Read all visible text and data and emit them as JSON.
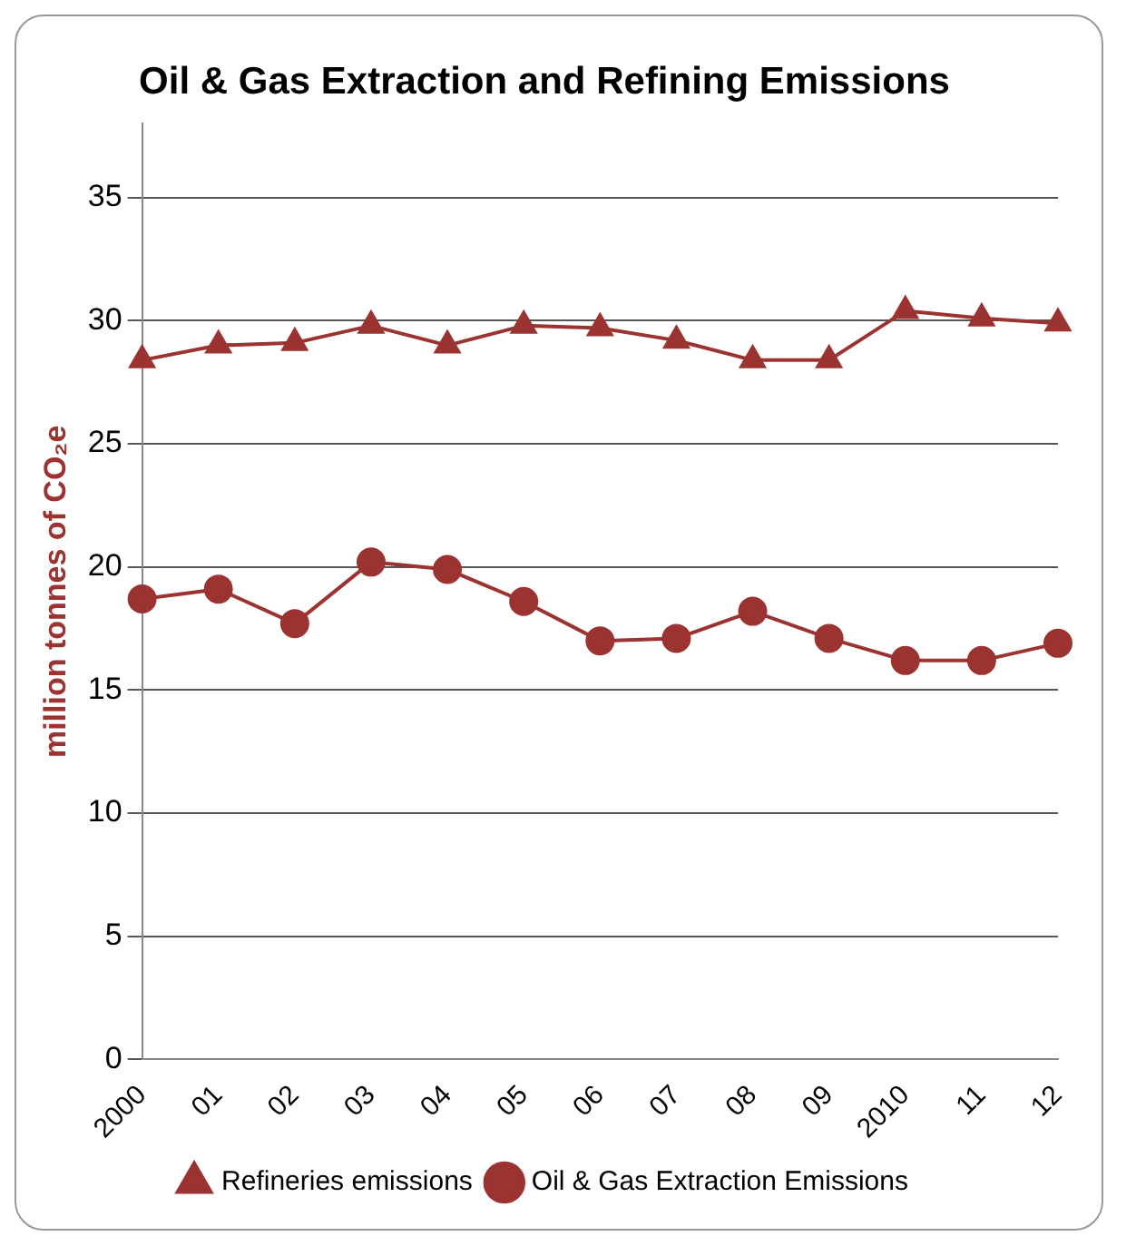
{
  "chart_data": {
    "type": "line",
    "title": "Oil & Gas Extraction and Refining Emissions",
    "ylabel": "million tonnes of CO₂e",
    "categories": [
      "2000",
      "01",
      "02",
      "03",
      "04",
      "05",
      "06",
      "07",
      "08",
      "09",
      "2010",
      "11",
      "12"
    ],
    "series": [
      {
        "name": "Refineries emissions",
        "color": "#9b3331",
        "marker": "triangle",
        "values": [
          28.4,
          29.0,
          29.1,
          29.8,
          29.0,
          29.8,
          29.7,
          29.2,
          28.4,
          28.4,
          30.4,
          30.1,
          29.9
        ]
      },
      {
        "name": "Oil & Gas Extraction Emissions",
        "color": "#9b3331",
        "marker": "circle",
        "values": [
          18.7,
          19.1,
          17.7,
          20.2,
          19.9,
          18.6,
          17.0,
          17.1,
          18.2,
          17.1,
          16.2,
          16.2,
          16.9
        ]
      }
    ],
    "ylim": [
      0,
      38
    ],
    "yticks": [
      0,
      5,
      10,
      15,
      20,
      25,
      30,
      35
    ],
    "grid": "y",
    "legend": "bottom",
    "line_style": "solid"
  }
}
